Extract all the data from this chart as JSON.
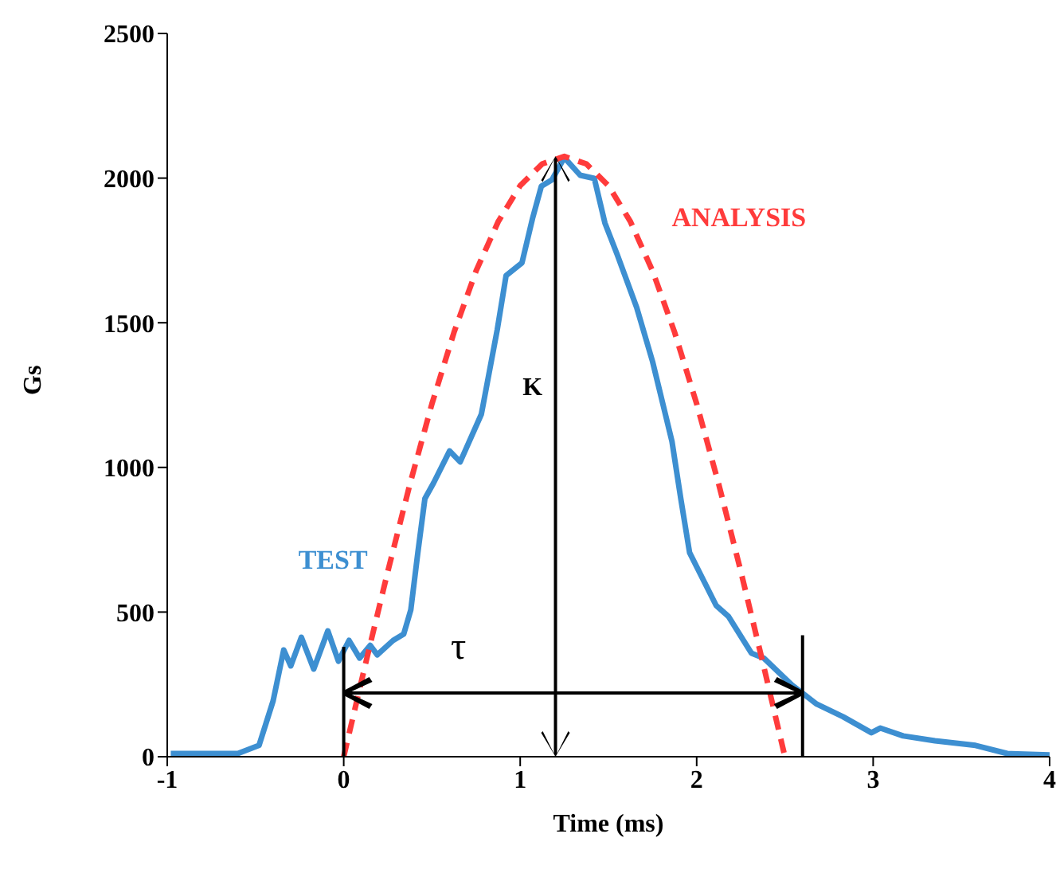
{
  "chart_data": {
    "type": "line",
    "xlabel": "Time (ms)",
    "ylabel": "Gs",
    "xlim": [
      -1,
      4
    ],
    "ylim": [
      0,
      2500
    ],
    "xticks": [
      -1,
      0,
      1,
      2,
      3,
      4
    ],
    "yticks": [
      0,
      500,
      1000,
      1500,
      2000,
      2500
    ],
    "line_style": "solid",
    "marker": "none",
    "series": [
      {
        "name": "TEST",
        "color": "#3d8fd1",
        "x": [
          -0.98,
          -0.6,
          -0.48,
          -0.4,
          -0.34,
          -0.3,
          -0.24,
          -0.17,
          -0.09,
          -0.03,
          0.03,
          0.09,
          0.15,
          0.19,
          0.28,
          0.34,
          0.38,
          0.42,
          0.46,
          0.51,
          0.6,
          0.66,
          0.78,
          0.87,
          0.92,
          1.01,
          1.07,
          1.12,
          1.18,
          1.25,
          1.34,
          1.42,
          1.48,
          1.55,
          1.66,
          1.75,
          1.86,
          1.91,
          1.96,
          2.11,
          2.18,
          2.31,
          2.38,
          2.54,
          2.68,
          2.83,
          2.99,
          3.04,
          3.17,
          3.35,
          3.58,
          3.76,
          4.0
        ],
        "values": [
          11,
          11,
          39,
          193,
          369,
          314,
          413,
          303,
          435,
          330,
          402,
          341,
          385,
          352,
          402,
          424,
          507,
          705,
          892,
          947,
          1057,
          1019,
          1184,
          1476,
          1663,
          1707,
          1861,
          1972,
          1994,
          2071,
          2010,
          1999,
          1845,
          1735,
          1553,
          1366,
          1090,
          892,
          705,
          523,
          485,
          358,
          341,
          248,
          182,
          138,
          83,
          99,
          72,
          55,
          39,
          11,
          6
        ]
      },
      {
        "name": "ANALYSIS",
        "color": "#ff3b3b",
        "line_style": "dashed",
        "x": [
          0,
          0.125,
          0.25,
          0.375,
          0.5,
          0.625,
          0.75,
          0.875,
          1,
          1.125,
          1.25,
          1.375,
          1.5,
          1.625,
          1.75,
          1.875,
          2,
          2.125,
          2.25,
          2.375,
          2.5
        ],
        "values": [
          0,
          325,
          641,
          942,
          1220,
          1467,
          1679,
          1849,
          1974,
          2049,
          2075,
          2049,
          1974,
          1849,
          1679,
          1467,
          1220,
          942,
          641,
          325,
          0
        ]
      }
    ],
    "annotations": [
      "K",
      "τ"
    ]
  }
}
